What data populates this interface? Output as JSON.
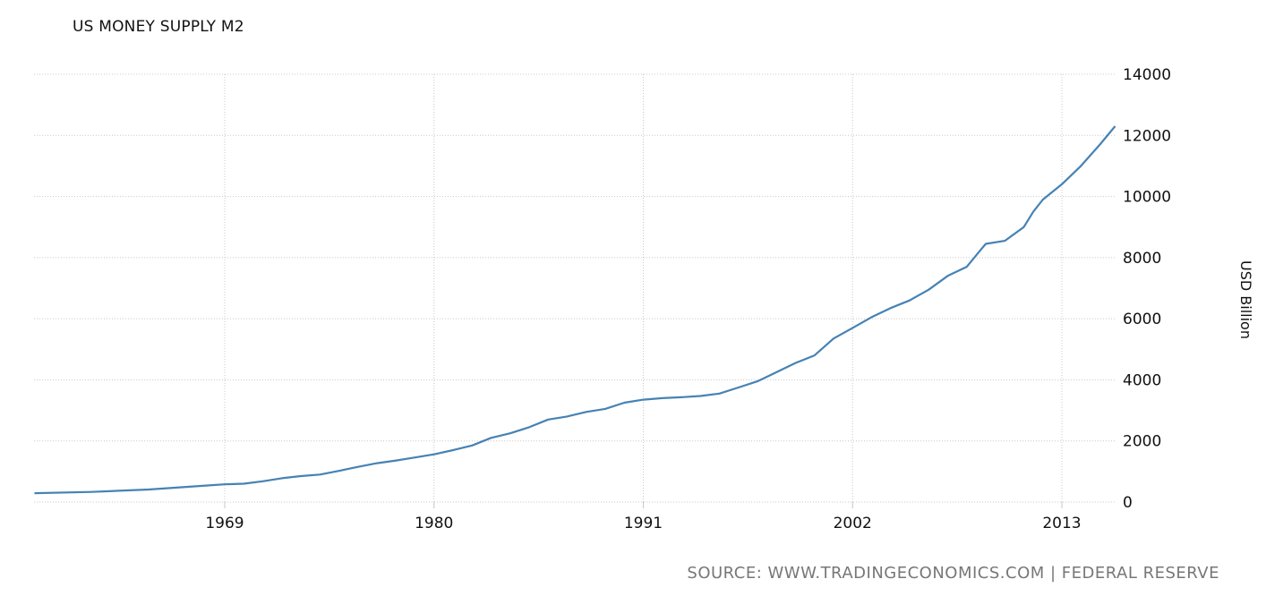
{
  "header": {
    "title": "US MONEY SUPPLY M2"
  },
  "footer": {
    "source": "SOURCE: WWW.TRADINGECONOMICS.COM | FEDERAL RESERVE"
  },
  "colors": {
    "line": "#4682b4",
    "grid": "#c8c8c8",
    "text": "#111111",
    "source_text": "#777777"
  },
  "chart_data": {
    "type": "line",
    "title": "US MONEY SUPPLY M2",
    "xlabel": "",
    "ylabel": "USD Billion",
    "x_ticks": [
      "1969",
      "1980",
      "1991",
      "2002",
      "2013"
    ],
    "y_ticks": [
      "0",
      "2000",
      "4000",
      "6000",
      "8000",
      "10000",
      "12000",
      "14000"
    ],
    "ylim": [
      0,
      14000
    ],
    "xlim": [
      1959,
      2015.8
    ],
    "grid": true,
    "y_axis_position": "right",
    "series": [
      {
        "name": "US Money Supply M2",
        "x": [
          1959,
          1962,
          1965,
          1968,
          1969,
          1970,
          1971,
          1972,
          1973,
          1974,
          1975,
          1976,
          1977,
          1978,
          1979,
          1980,
          1981,
          1982,
          1983,
          1984,
          1985,
          1986,
          1987,
          1988,
          1989,
          1990,
          1991,
          1992,
          1993,
          1994,
          1995,
          1996,
          1997,
          1998,
          1999,
          2000,
          2001,
          2002,
          2003,
          2004,
          2005,
          2006,
          2007,
          2008,
          2008.8,
          2009,
          2010,
          2011,
          2011.5,
          2012,
          2013,
          2014,
          2015,
          2015.8
        ],
        "values": [
          290,
          330,
          410,
          540,
          580,
          600,
          680,
          780,
          850,
          900,
          1020,
          1150,
          1270,
          1360,
          1460,
          1560,
          1700,
          1850,
          2100,
          2250,
          2450,
          2700,
          2800,
          2950,
          3050,
          3250,
          3350,
          3400,
          3430,
          3470,
          3550,
          3750,
          3950,
          4250,
          4550,
          4800,
          5350,
          5700,
          6050,
          6350,
          6600,
          6950,
          7400,
          7700,
          8300,
          8450,
          8550,
          9000,
          9500,
          9900,
          10400,
          11000,
          11700,
          12300
        ]
      }
    ]
  }
}
